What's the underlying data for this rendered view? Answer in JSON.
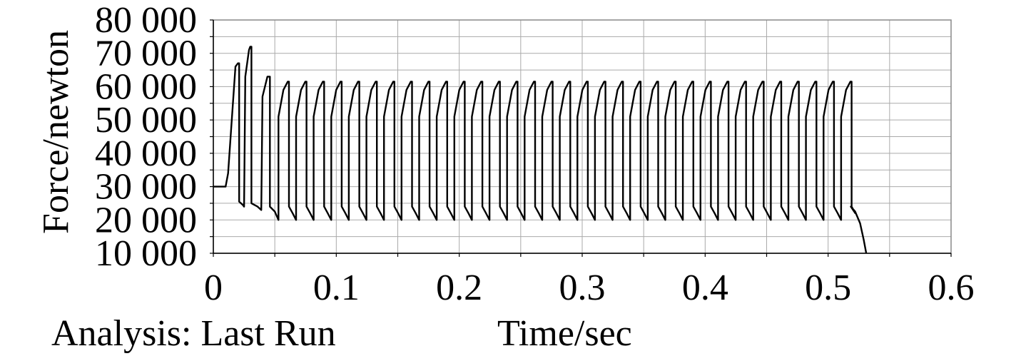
{
  "chart_data": {
    "type": "line",
    "xlabel": "Time/sec",
    "ylabel": "Force/newton",
    "xlim": [
      0,
      0.6
    ],
    "ylim": [
      10000,
      80000
    ],
    "x_ticks": [
      "0",
      "0.1",
      "0.2",
      "0.3",
      "0.4",
      "0.5",
      "0.6"
    ],
    "y_ticks": [
      "10 000",
      "20 000",
      "30 000",
      "40 000",
      "50 000",
      "60 000",
      "70 000",
      "80 000"
    ],
    "grid": true,
    "series": [
      {
        "x": [
          0,
          0.01,
          0.012,
          0.018,
          0.02,
          0.021,
          0.021,
          0.024,
          0.025,
          0.026,
          0.029,
          0.03,
          0.031,
          0.031,
          0.036,
          0.039,
          0.04,
          0.044,
          0.045,
          0.046,
          0.046,
          0.05,
          0.053
        ],
        "y": [
          30000,
          30000,
          34000,
          66000,
          67000,
          67000,
          25500,
          24500,
          24000,
          63000,
          71000,
          72000,
          72000,
          25000,
          24000,
          23000,
          57000,
          63000,
          63000,
          63000,
          24000,
          22500,
          20000
        ]
      }
    ],
    "cycles": {
      "start": 0.053,
      "period": 0.0143,
      "count": 33,
      "rise_from": 51000,
      "peak": 61500,
      "drop_to": 24000,
      "mid": 22000,
      "trough": 20000
    },
    "tail": {
      "x": [
        0.5185,
        0.522,
        0.526,
        0.529,
        0.531
      ],
      "y": [
        24000,
        22500,
        19000,
        14000,
        10000
      ]
    }
  },
  "footer": {
    "analysis_label": "Analysis: Last Run"
  }
}
